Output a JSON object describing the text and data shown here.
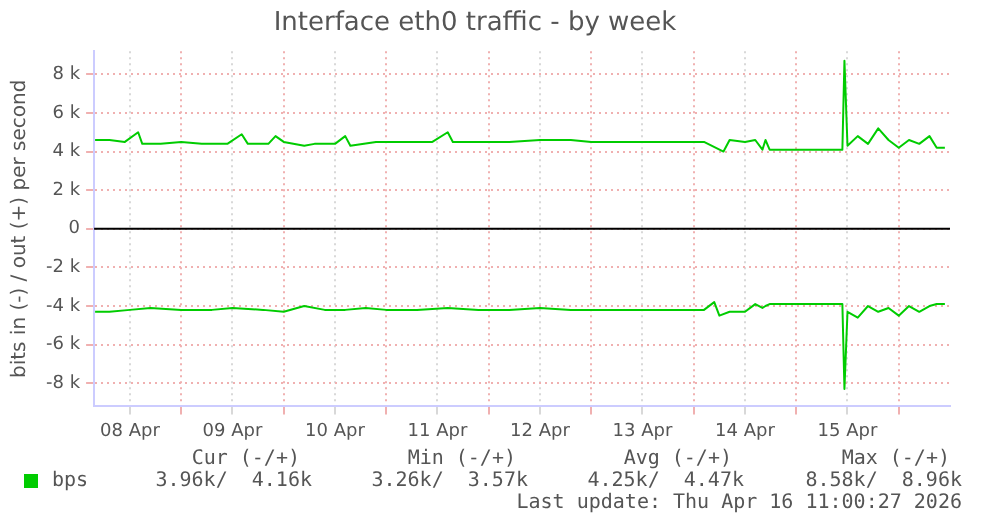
{
  "chart_data": {
    "type": "line",
    "title": "Interface eth0 traffic - by week",
    "ylabel": "bits in (-) / out (+) per second",
    "xlim": [
      "2026-04-08T03:36",
      "2026-04-16T12:00"
    ],
    "xticks": [
      {
        "value": "2026-04-08T12:00",
        "label": "08 Apr"
      },
      {
        "value": "2026-04-09",
        "label": null
      },
      {
        "value": "2026-04-09T12:00",
        "label": "09 Apr"
      },
      {
        "value": "2026-04-10",
        "label": null
      },
      {
        "value": "2026-04-10T12:00",
        "label": "10 Apr"
      },
      {
        "value": "2026-04-11",
        "label": null
      },
      {
        "value": "2026-04-11T12:00",
        "label": "11 Apr"
      },
      {
        "value": "2026-04-12",
        "label": null
      },
      {
        "value": "2026-04-12T12:00",
        "label": "12 Apr"
      },
      {
        "value": "2026-04-13",
        "label": null
      },
      {
        "value": "2026-04-13T12:00",
        "label": "13 Apr"
      },
      {
        "value": "2026-04-14",
        "label": null
      },
      {
        "value": "2026-04-14T12:00",
        "label": "14 Apr"
      },
      {
        "value": "2026-04-15",
        "label": null
      },
      {
        "value": "2026-04-15T12:00",
        "label": "15 Apr"
      },
      {
        "value": "2026-04-16",
        "label": null
      }
    ],
    "ylim": [
      -9200,
      9200
    ],
    "yticks": [
      {
        "value": -8000,
        "label": "-8 k"
      },
      {
        "value": -6000,
        "label": "-6 k"
      },
      {
        "value": -4000,
        "label": "-4 k"
      },
      {
        "value": -2000,
        "label": "-2 k"
      },
      0,
      {
        "value": 2000,
        "label": "2 k"
      },
      {
        "value": 4000,
        "label": "4 k"
      },
      {
        "value": 6000,
        "label": "6 k"
      },
      {
        "value": 8000,
        "label": "8 k"
      }
    ],
    "grid": true,
    "legend": "bottom left",
    "marker": "none",
    "line_style": "solid",
    "ref_lines": [
      {
        "axis": "y",
        "value": 0,
        "color": "#000000"
      }
    ],
    "series": [
      {
        "name": "bps",
        "color": "#00cc00",
        "x": [
          "2026-04-08T03:50",
          "2026-04-08T07:12",
          "2026-04-08T10:48",
          "2026-04-08T13:55",
          "2026-04-08T14:53",
          "2026-04-08T19:12",
          "2026-04-09",
          "2026-04-09T04:48",
          "2026-04-09T10:48",
          "2026-04-09T14:10",
          "2026-04-09T15:36",
          "2026-04-09T20:24",
          "2026-04-09T22:05",
          "2026-04-10",
          "2026-04-10T04:48",
          "2026-04-10T07:12",
          "2026-04-10T12:00",
          "2026-04-10T14:24",
          "2026-04-10T15:36",
          "2026-04-10T21:36",
          "2026-04-11T04:48",
          "2026-04-11T10:48",
          "2026-04-11T14:24",
          "2026-04-11T15:36",
          "2026-04-11T21:36",
          "2026-04-12T04:48",
          "2026-04-12T12:00",
          "2026-04-12T19:12",
          "2026-04-13",
          "2026-04-13T07:12",
          "2026-04-13T14:24",
          "2026-04-13T21:36",
          "2026-04-14T02:24",
          "2026-04-14T06:58",
          "2026-04-14T08:24",
          "2026-04-14T12:00",
          "2026-04-14T14:24",
          "2026-04-14T16:05",
          "2026-04-14T16:48",
          "2026-04-14T17:46",
          "2026-04-15",
          "2026-04-15T04:48",
          "2026-04-15T10:48",
          "2026-04-15T11:17",
          "2026-04-15T12:00",
          "2026-04-15T14:24",
          "2026-04-15T16:48",
          "2026-04-15T19:12",
          "2026-04-15T21:36",
          "2026-04-16",
          "2026-04-16T02:24",
          "2026-04-16T04:48",
          "2026-04-16T07:12",
          "2026-04-16T08:53",
          "2026-04-16T10:48"
        ],
        "values": [
          4600,
          4600,
          4500,
          5000,
          4400,
          4400,
          4500,
          4400,
          4400,
          4900,
          4400,
          4400,
          4800,
          4500,
          4300,
          4400,
          4400,
          4800,
          4300,
          4500,
          4500,
          4500,
          5000,
          4500,
          4500,
          4500,
          4600,
          4600,
          4500,
          4500,
          4500,
          4500,
          4500,
          4000,
          4600,
          4500,
          4600,
          4100,
          4600,
          4100,
          4100,
          4100,
          4100,
          8700,
          4300,
          4800,
          4400,
          5200,
          4600,
          4200,
          4600,
          4400,
          4800,
          4200,
          4200
        ]
      },
      {
        "color": "#00cc00",
        "x": [
          "2026-04-08T03:50",
          "2026-04-08T07:12",
          "2026-04-08T12:00",
          "2026-04-08T16:48",
          "2026-04-09",
          "2026-04-09T07:12",
          "2026-04-09T12:00",
          "2026-04-09T19:12",
          "2026-04-10",
          "2026-04-10T04:48",
          "2026-04-10T09:36",
          "2026-04-10T14:24",
          "2026-04-10T19:12",
          "2026-04-11",
          "2026-04-11T07:12",
          "2026-04-11T14:24",
          "2026-04-11T21:36",
          "2026-04-12T04:48",
          "2026-04-12T12:00",
          "2026-04-12T19:12",
          "2026-04-13",
          "2026-04-13T07:12",
          "2026-04-13T14:24",
          "2026-04-13T21:36",
          "2026-04-14T02:24",
          "2026-04-14T04:48",
          "2026-04-14T06:00",
          "2026-04-14T08:24",
          "2026-04-14T12:00",
          "2026-04-14T14:24",
          "2026-04-14T16:05",
          "2026-04-14T16:48",
          "2026-04-14T17:46",
          "2026-04-15",
          "2026-04-15T04:48",
          "2026-04-15T10:48",
          "2026-04-15T11:17",
          "2026-04-15T12:00",
          "2026-04-15T14:24",
          "2026-04-15T16:48",
          "2026-04-15T19:12",
          "2026-04-15T21:36",
          "2026-04-16",
          "2026-04-16T02:24",
          "2026-04-16T04:48",
          "2026-04-16T07:12",
          "2026-04-16T08:53",
          "2026-04-16T10:48"
        ],
        "values": [
          -4300,
          -4300,
          -4200,
          -4100,
          -4200,
          -4200,
          -4100,
          -4200,
          -4300,
          -4000,
          -4200,
          -4200,
          -4100,
          -4200,
          -4200,
          -4100,
          -4200,
          -4200,
          -4100,
          -4200,
          -4200,
          -4200,
          -4200,
          -4200,
          -4200,
          -3800,
          -4500,
          -4300,
          -4300,
          -3900,
          -4100,
          -4000,
          -3900,
          -3900,
          -3900,
          -3900,
          -8300,
          -4300,
          -4600,
          -4000,
          -4300,
          -4100,
          -4500,
          -4000,
          -4300,
          -4000,
          -3900,
          -3900
        ]
      }
    ],
    "annotations": [
      "Cur (-/+)",
      "Min (-/+)",
      "Avg (-/+)",
      "Max (-/+)",
      "3.96k/  4.16k",
      "3.26k/  3.57k",
      "4.25k/  4.47k",
      "8.58k/  8.96k",
      "Last update: Thu Apr 16 11:00:27 2026"
    ]
  }
}
